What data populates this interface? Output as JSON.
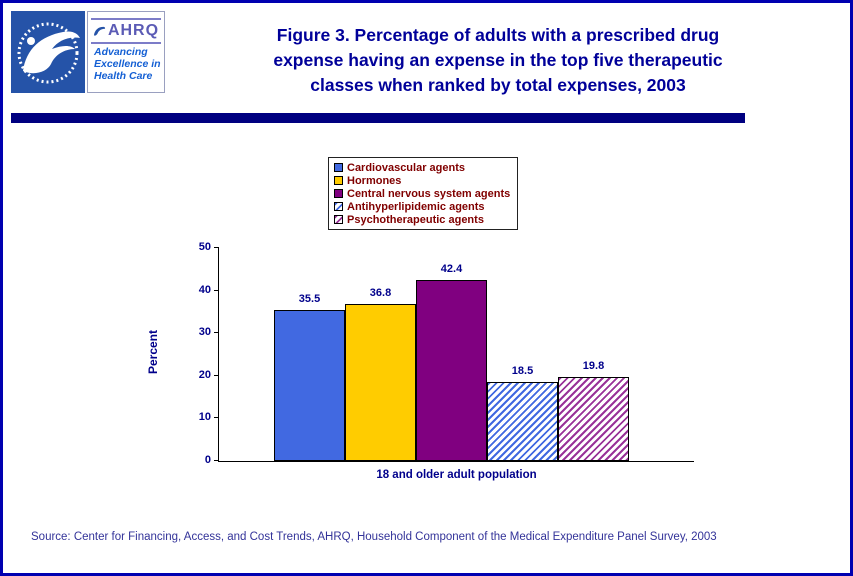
{
  "page": {
    "frame_color": "#0000B0",
    "divider_color": "#000080"
  },
  "header": {
    "title_lines": [
      "Figure 3. Percentage of adults with a prescribed drug",
      "expense having an expense in the top five therapeutic",
      "classes when ranked by total expenses, 2003"
    ],
    "logos": {
      "hhs": "HHS seal",
      "ahrq_acronym": "AHRQ",
      "ahrq_tagline_lines": [
        "Advancing",
        "Excellence in",
        "Health Care"
      ]
    }
  },
  "chart_data": {
    "type": "bar",
    "title": "Figure 3. Percentage of adults with a prescribed drug expense having an expense in the top five therapeutic classes when ranked by total expenses, 2003",
    "categories": [
      "18 and older adult population"
    ],
    "series": [
      {
        "name": "Cardiovascular agents",
        "values": [
          35.5
        ],
        "color": "#4169E1",
        "pattern": "solid"
      },
      {
        "name": "Hormones",
        "values": [
          36.8
        ],
        "color": "#FFCC00",
        "pattern": "solid"
      },
      {
        "name": "Central nervous system agents",
        "values": [
          42.4
        ],
        "color": "#800080",
        "pattern": "solid"
      },
      {
        "name": "Antihyperlipidemic agents",
        "values": [
          18.5
        ],
        "color": "#4169E1",
        "pattern": "hatch"
      },
      {
        "name": "Psychotherapeutic agents",
        "values": [
          19.8
        ],
        "color": "#993399",
        "pattern": "hatch"
      }
    ],
    "xlabel": "18 and older adult population",
    "ylabel": "Percent",
    "ylim": [
      0,
      50
    ],
    "yticks": [
      0,
      10,
      20,
      30,
      40,
      50
    ],
    "grid": false,
    "legend_position": "top-center",
    "label_color": "#00008B",
    "legend_text_color": "#800000"
  },
  "source": {
    "text": "Source: Center for Financing, Access, and Cost Trends, AHRQ, Household Component of the Medical Expenditure Panel Survey, 2003"
  }
}
